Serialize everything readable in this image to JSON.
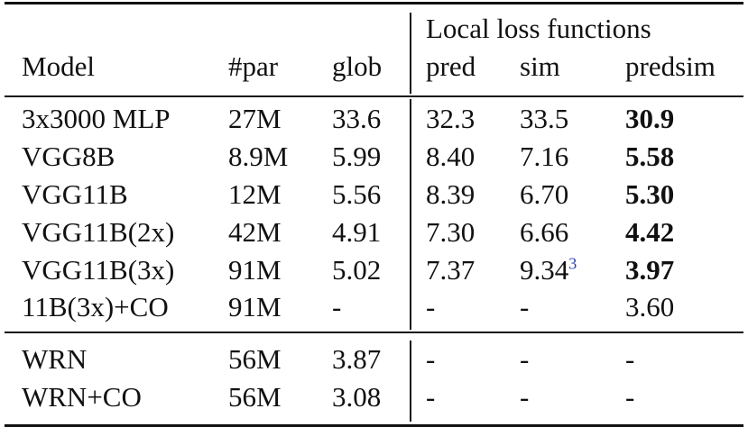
{
  "table": {
    "group_header": "Local loss functions",
    "columns": [
      "Model",
      "#par",
      "glob",
      "pred",
      "sim",
      "predsim"
    ],
    "rows": [
      {
        "model": "3x3000 MLP",
        "par": "27M",
        "glob": "33.6",
        "pred": "32.3",
        "sim": "33.5",
        "sim_note": "",
        "predsim": "30.9",
        "predsim_bold": true
      },
      {
        "model": "VGG8B",
        "par": "8.9M",
        "glob": "5.99",
        "pred": "8.40",
        "sim": "7.16",
        "sim_note": "",
        "predsim": "5.58",
        "predsim_bold": true
      },
      {
        "model": "VGG11B",
        "par": "12M",
        "glob": "5.56",
        "pred": "8.39",
        "sim": "6.70",
        "sim_note": "",
        "predsim": "5.30",
        "predsim_bold": true
      },
      {
        "model": "VGG11B(2x)",
        "par": "42M",
        "glob": "4.91",
        "pred": "7.30",
        "sim": "6.66",
        "sim_note": "",
        "predsim": "4.42",
        "predsim_bold": true
      },
      {
        "model": "VGG11B(3x)",
        "par": "91M",
        "glob": "5.02",
        "pred": "7.37",
        "sim": "9.34",
        "sim_note": "3",
        "predsim": "3.97",
        "predsim_bold": true
      },
      {
        "model": "11B(3x)+CO",
        "par": "91M",
        "glob": "-",
        "pred": "-",
        "sim": "-",
        "sim_note": "",
        "predsim": "3.60",
        "predsim_bold": false
      },
      {
        "model": "WRN",
        "par": "56M",
        "glob": "3.87",
        "pred": "-",
        "sim": "-",
        "sim_note": "",
        "predsim": "-",
        "predsim_bold": false
      },
      {
        "model": "WRN+CO",
        "par": "56M",
        "glob": "3.08",
        "pred": "-",
        "sim": "-",
        "sim_note": "",
        "predsim": "-",
        "predsim_bold": false
      }
    ]
  }
}
